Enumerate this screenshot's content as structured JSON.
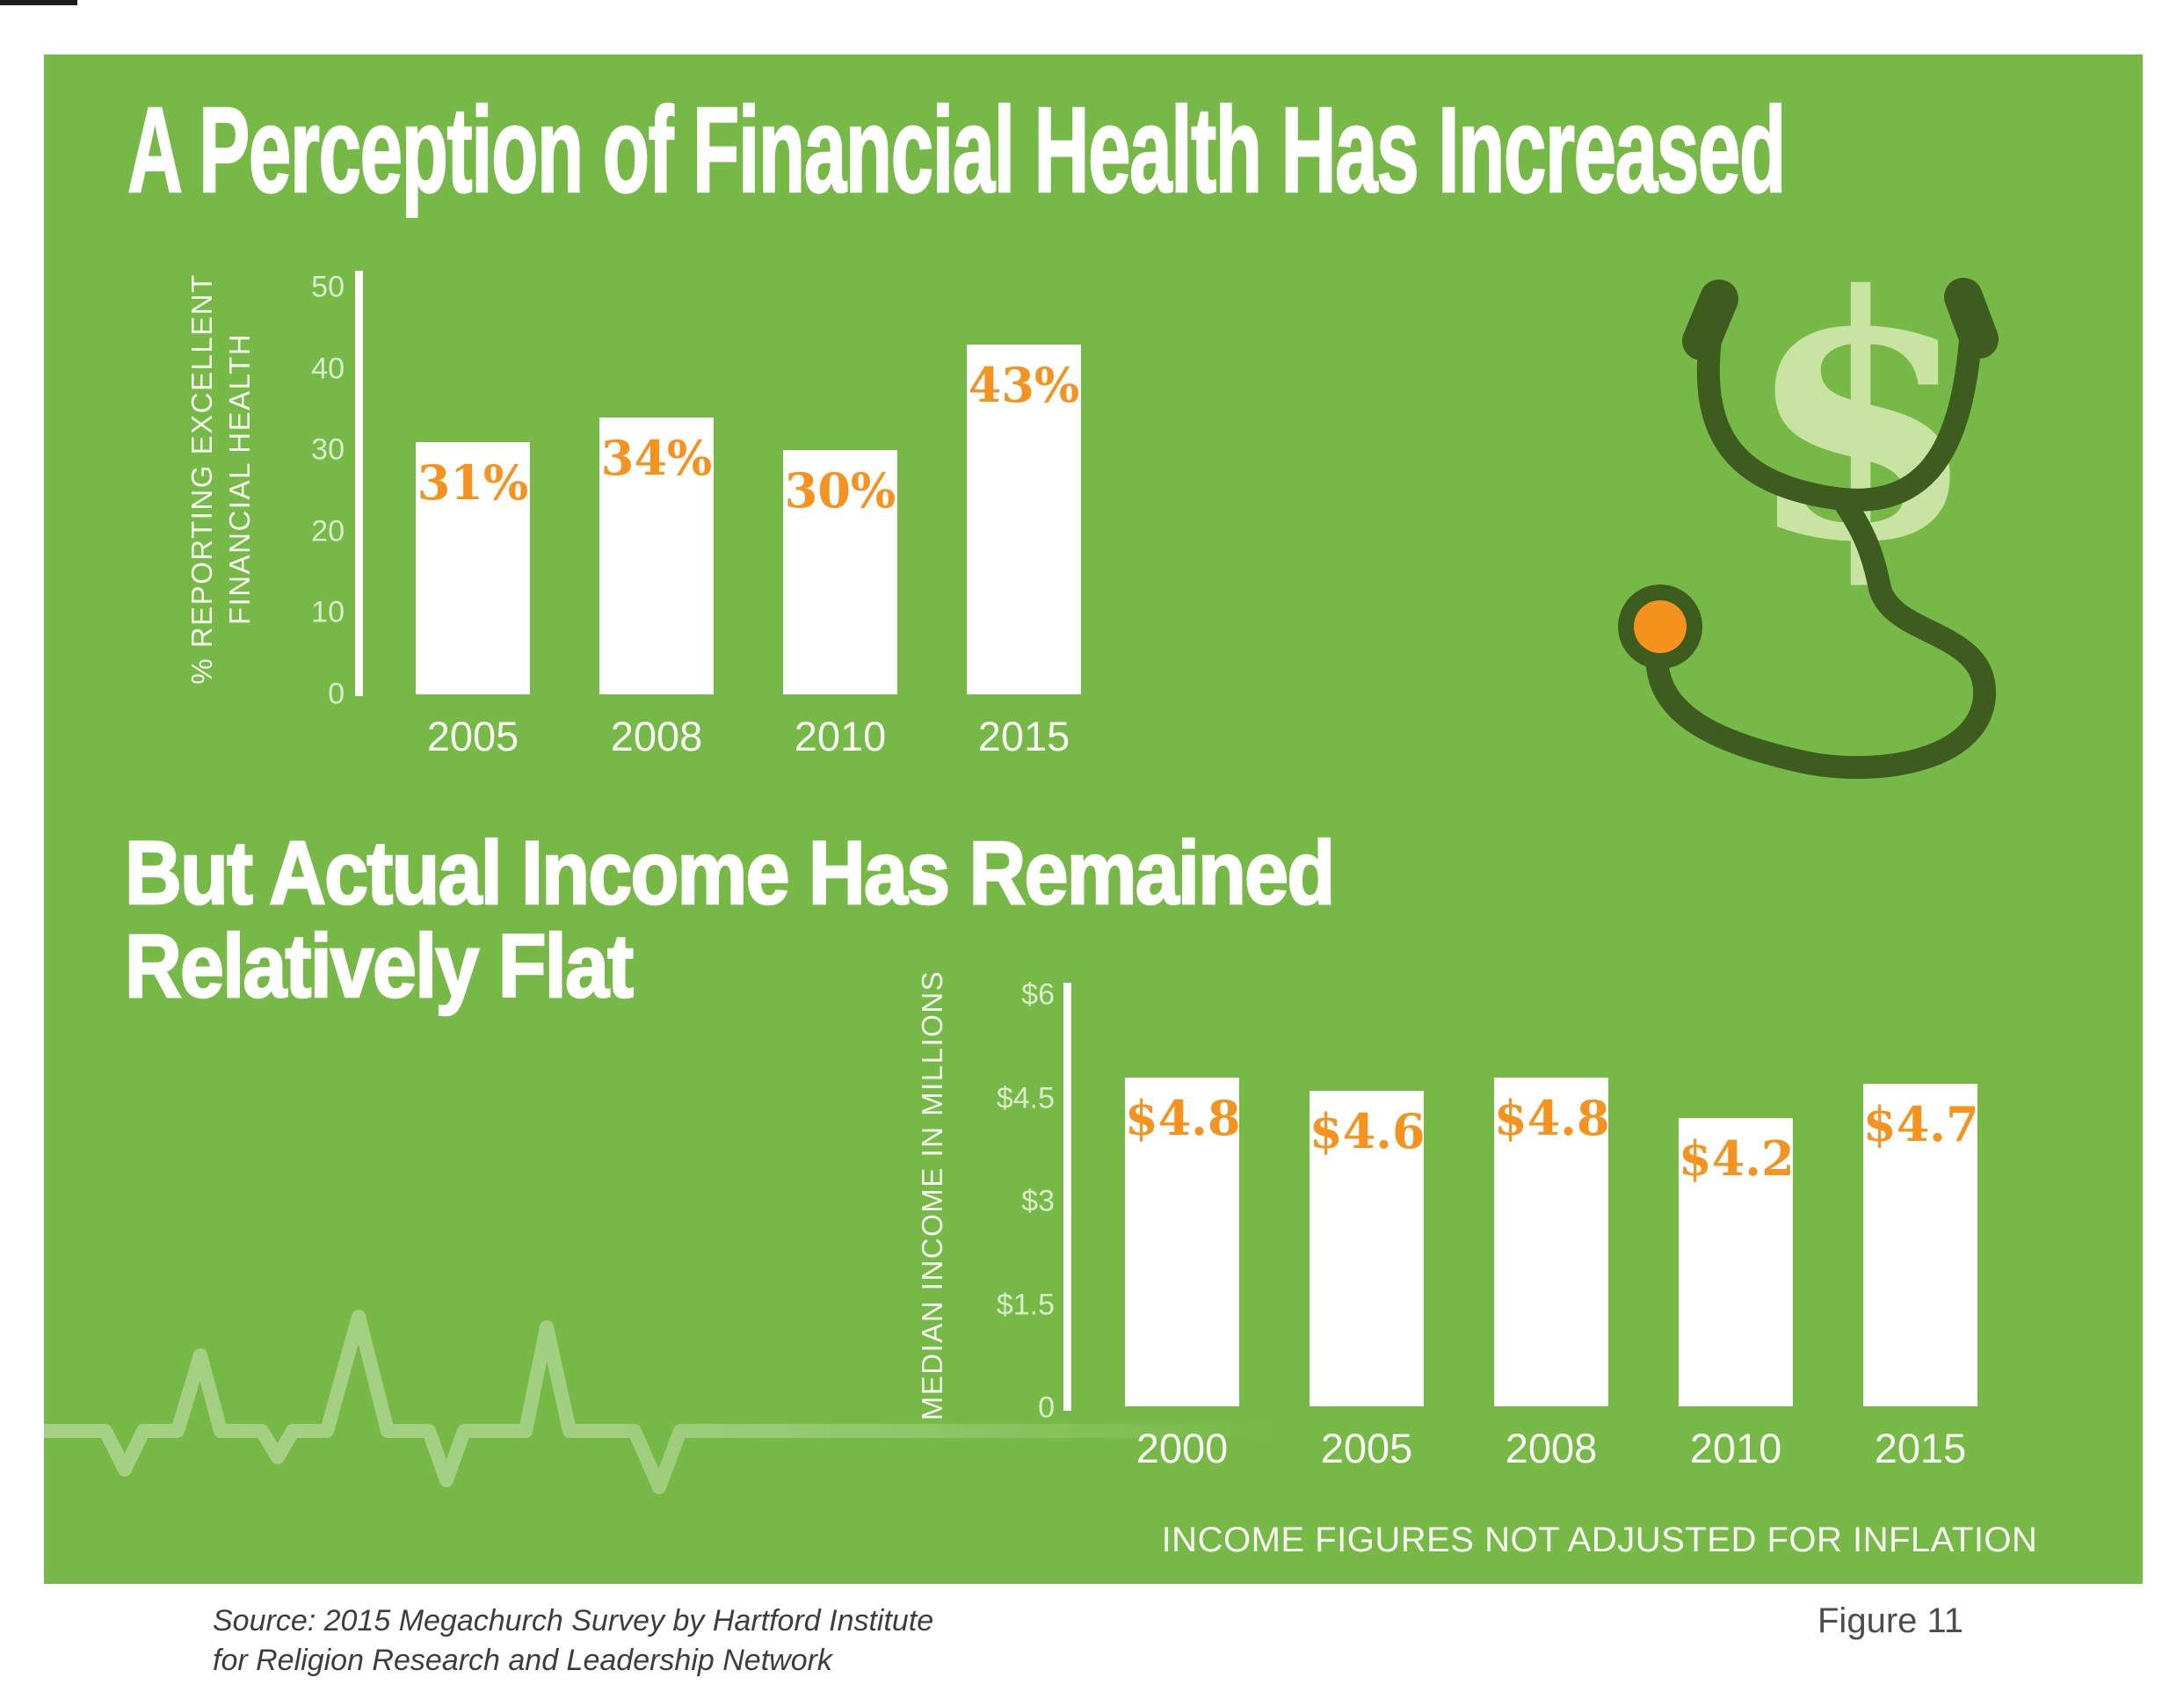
{
  "page": {
    "figure_label": "Figure 11",
    "source_line1": "Source: 2015 Megachurch Survey by Hartford Institute",
    "source_line2": "for Religion Research and Leadership Network",
    "colors": {
      "panel": "#76b946",
      "orange": "#f6921e",
      "dark_green": "#3e5b20",
      "pale_green": "#c8e3a2",
      "white": "#ffffff"
    }
  },
  "icons": {
    "stethoscope": "stethoscope-with-dollar-sign-icon",
    "dollar": "dollar-sign-icon",
    "heartbeat": "ekg-heartbeat-line"
  },
  "chart_data": [
    {
      "type": "bar",
      "title": "A Perception of Financial Health Has Increased",
      "ylabel": "% REPORTING EXCELLENT FINANCIAL HEALTH",
      "ylabel_lines": [
        "% REPORTING EXCELLENT",
        "FINANCIAL HEALTH"
      ],
      "xlabel": "",
      "categories": [
        "2005",
        "2008",
        "2010",
        "2015"
      ],
      "values": [
        31,
        34,
        30,
        43
      ],
      "labels": [
        "31%",
        "34%",
        "30%",
        "43%"
      ],
      "yticks": [
        {
          "label": "50",
          "value": 50
        },
        {
          "label": "40",
          "value": 40
        },
        {
          "label": "30",
          "value": 30
        },
        {
          "label": "20",
          "value": 20
        },
        {
          "label": "10",
          "value": 10
        },
        {
          "label": "0",
          "value": 0
        }
      ],
      "ylim": [
        0,
        50
      ],
      "grid": false,
      "legend": false,
      "bar_color": "#ffffff",
      "value_label_color": "#f6921e"
    },
    {
      "type": "bar",
      "title": "But Actual Income Has Remained Relatively Flat",
      "title_lines": [
        "But Actual Income Has Remained",
        "Relatively Flat"
      ],
      "ylabel": "MEDIAN INCOME IN MILLIONS",
      "xlabel": "",
      "categories": [
        "2000",
        "2005",
        "2008",
        "2010",
        "2015"
      ],
      "values": [
        4.8,
        4.6,
        4.8,
        4.2,
        4.7
      ],
      "labels": [
        "$4.8",
        "$4.6",
        "$4.8",
        "$4.2",
        "$4.7"
      ],
      "yticks": [
        {
          "label": "$6",
          "value": 6
        },
        {
          "label": "$4.5",
          "value": 4.5
        },
        {
          "label": "$3",
          "value": 3
        },
        {
          "label": "$1.5",
          "value": 1.5
        },
        {
          "label": "0",
          "value": 0
        }
      ],
      "ylim": [
        0,
        6
      ],
      "grid": false,
      "legend": false,
      "bar_color": "#ffffff",
      "value_label_color": "#f6921e",
      "note": "INCOME FIGURES NOT ADJUSTED FOR INFLATION"
    }
  ]
}
